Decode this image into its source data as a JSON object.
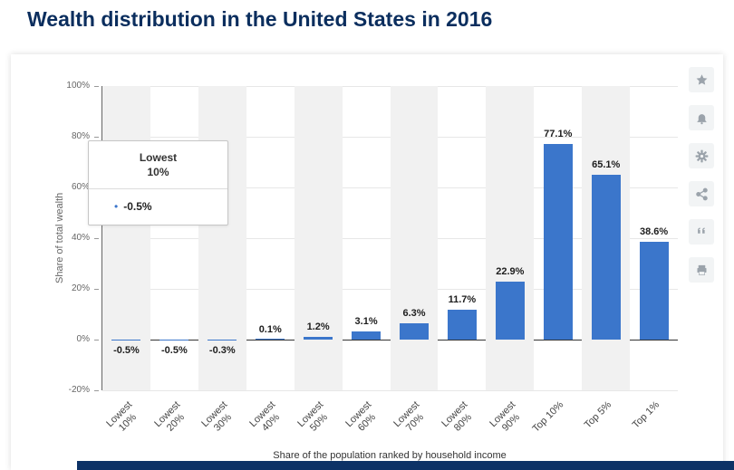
{
  "page": {
    "title": "Wealth distribution in the United States in 2016"
  },
  "toolbar": {
    "icons": [
      "favorite-star",
      "notification-bell",
      "settings-gear",
      "share",
      "cite-quote",
      "print"
    ]
  },
  "tooltip": {
    "category_line1": "Lowest",
    "category_line2": "10%",
    "bullet": "•",
    "value": "-0.5%"
  },
  "chart_data": {
    "type": "bar",
    "title": "Wealth distribution in the United States in 2016",
    "categories": [
      "Lowest 10%",
      "Lowest 20%",
      "Lowest 30%",
      "Lowest 40%",
      "Lowest 50%",
      "Lowest 60%",
      "Lowest 70%",
      "Lowest 80%",
      "Lowest 90%",
      "Top 10%",
      "Top 5%",
      "Top 1%"
    ],
    "category_lines": [
      [
        "Lowest",
        "10%"
      ],
      [
        "Lowest",
        "20%"
      ],
      [
        "Lowest",
        "30%"
      ],
      [
        "Lowest",
        "40%"
      ],
      [
        "Lowest",
        "50%"
      ],
      [
        "Lowest",
        "60%"
      ],
      [
        "Lowest",
        "70%"
      ],
      [
        "Lowest",
        "80%"
      ],
      [
        "Lowest",
        "90%"
      ],
      [
        "Top 10%"
      ],
      [
        "Top 5%"
      ],
      [
        "Top 1%"
      ]
    ],
    "values": [
      -0.5,
      -0.5,
      -0.3,
      0.1,
      1.2,
      3.1,
      6.3,
      11.7,
      22.9,
      77.1,
      65.1,
      38.6
    ],
    "value_labels": [
      "-0.5%",
      "-0.5%",
      "-0.3%",
      "0.1%",
      "1.2%",
      "3.1%",
      "6.3%",
      "11.7%",
      "22.9%",
      "77.1%",
      "65.1%",
      "38.6%"
    ],
    "xlabel": "Share of the population ranked by household income",
    "ylabel": "Share of total wealth",
    "ylim": [
      -20,
      100
    ],
    "yticks": [
      {
        "value": 100,
        "label": "100%"
      },
      {
        "value": 80,
        "label": "80%"
      },
      {
        "value": 60,
        "label": "60%"
      },
      {
        "value": 40,
        "label": "40%"
      },
      {
        "value": 20,
        "label": "20%"
      },
      {
        "value": 0,
        "label": "0%"
      },
      {
        "value": -20,
        "label": "-20%"
      }
    ],
    "bar_color": "#3b76cb",
    "stripe_color": "#f1f1f1",
    "grid": true,
    "legend": "none"
  },
  "colors": {
    "title": "#0b2e5e",
    "bar": "#3b76cb",
    "footer": "#0d3266"
  }
}
